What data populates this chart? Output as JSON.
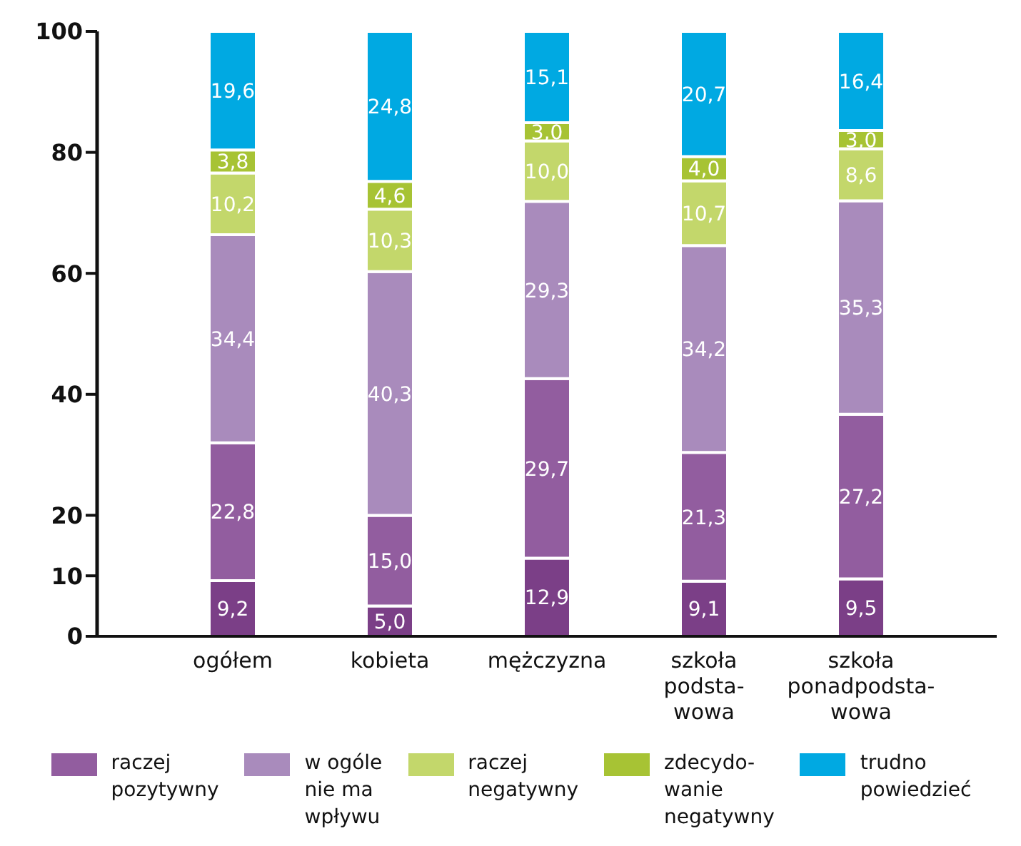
{
  "chart_data": {
    "type": "bar",
    "stacked": true,
    "categories": [
      "ogółem",
      "kobieta",
      "mężczyzna",
      "szkoła podsta-wowa",
      "szkoła ponadpodsta-wowa"
    ],
    "series": [
      {
        "color": "#7b3f87",
        "values": [
          9.2,
          5.0,
          12.9,
          9.1,
          9.5
        ],
        "value_labels": [
          "9,2",
          "5,0",
          "12,9",
          "9,1",
          "9,5"
        ]
      },
      {
        "name": "raczej pozytywny",
        "color": "#925d9f",
        "values": [
          22.8,
          15.0,
          29.7,
          21.3,
          27.2
        ],
        "value_labels": [
          "22,8",
          "15,0",
          "29,7",
          "21,3",
          "27,2"
        ]
      },
      {
        "name": "w ogóle nie ma wpływu",
        "color": "#a98bbc",
        "values": [
          34.4,
          40.3,
          29.3,
          34.2,
          35.3
        ],
        "value_labels": [
          "34,4",
          "40,3",
          "29,3",
          "34,2",
          "35,3"
        ]
      },
      {
        "name": "raczej negatywny",
        "color": "#c3d76b",
        "values": [
          10.2,
          10.3,
          10.0,
          10.7,
          8.6
        ],
        "value_labels": [
          "10,2",
          "10,3",
          "10,0",
          "10,7",
          "8,6"
        ]
      },
      {
        "name": "zdecydo-wanie negatywny",
        "color": "#a7c334",
        "values": [
          3.8,
          4.6,
          3.0,
          4.0,
          3.0
        ],
        "value_labels": [
          "3,8",
          "4,6",
          "3,0",
          "4,0",
          "3,0"
        ]
      },
      {
        "name": "trudno powiedzieć",
        "color": "#00a9e2",
        "values": [
          19.6,
          24.8,
          15.1,
          20.7,
          16.4
        ],
        "value_labels": [
          "19,6",
          "24,8",
          "15,1",
          "20,7",
          "16,4"
        ]
      }
    ],
    "ylim": [
      0,
      100
    ],
    "yticks": [
      0,
      10,
      20,
      40,
      60,
      80,
      100
    ],
    "grid": false,
    "legend": "bottom"
  }
}
